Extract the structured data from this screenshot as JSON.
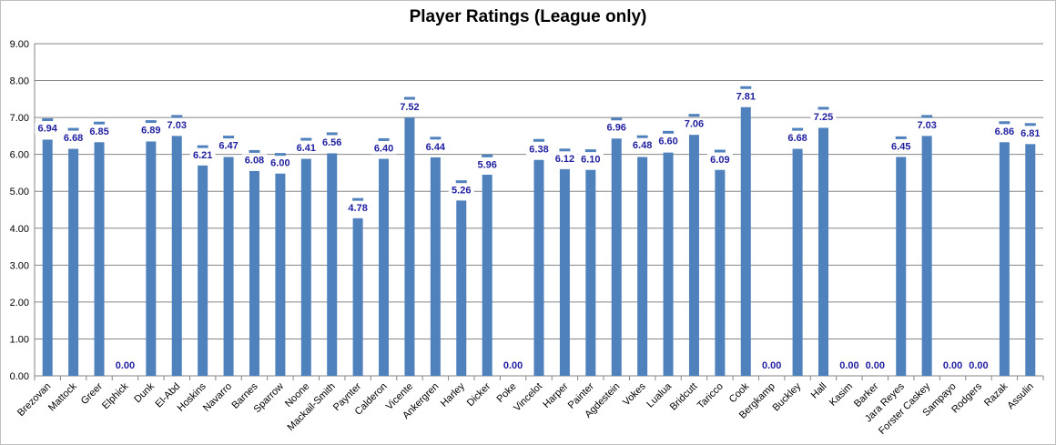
{
  "chart_data": {
    "type": "bar",
    "title": "Player Ratings (League only)",
    "xlabel": "",
    "ylabel": "",
    "ylim": [
      0,
      9
    ],
    "yticks": [
      "0.00",
      "1.00",
      "2.00",
      "3.00",
      "4.00",
      "5.00",
      "6.00",
      "7.00",
      "8.00",
      "9.00"
    ],
    "grid": true,
    "legend": "none",
    "bar_color": "#4f81bd",
    "marker_color": "#4f81bd",
    "label_color": "#1f1fa0",
    "categories": [
      "Brezovan",
      "Mattock",
      "Greer",
      "Elphick",
      "Dunk",
      "El-Abd",
      "Hoskins",
      "Navarro",
      "Barnes",
      "Sparrow",
      "Noone",
      "Mackail-Smith",
      "Paynter",
      "Calderon",
      "Vicente",
      "Ankergren",
      "Harley",
      "Dicker",
      "Poke",
      "Vincelot",
      "Harper",
      "Painter",
      "Agdestein",
      "Vokes",
      "Lualua",
      "Bridcutt",
      "Taricco",
      "Cook",
      "Bergkamp",
      "Buckley",
      "Hall",
      "Kasim",
      "Barker",
      "Jara Reyes",
      "Forster Caskey",
      "Sampayo",
      "Rodgers",
      "Razak",
      "Assulin"
    ],
    "series": [
      {
        "values": [
          6.4,
          6.15,
          6.33,
          0,
          6.35,
          6.5,
          5.7,
          5.93,
          5.55,
          5.48,
          5.88,
          6.03,
          4.27,
          5.88,
          7.0,
          5.92,
          4.75,
          5.45,
          0,
          5.85,
          5.6,
          5.58,
          6.43,
          5.93,
          6.05,
          6.53,
          5.58,
          7.28,
          0,
          6.15,
          6.72,
          0,
          0,
          5.93,
          6.5,
          0,
          0,
          6.33,
          6.28
        ]
      },
      {
        "values": [
          6.94,
          6.68,
          6.85,
          0.0,
          6.89,
          7.03,
          6.21,
          6.47,
          6.08,
          6.0,
          6.41,
          6.56,
          4.78,
          6.4,
          7.52,
          6.44,
          5.26,
          5.96,
          0.0,
          6.38,
          6.12,
          6.1,
          6.96,
          6.48,
          6.6,
          7.06,
          6.09,
          7.81,
          0.0,
          6.68,
          7.25,
          0.0,
          0.0,
          6.45,
          7.03,
          0.0,
          0.0,
          6.86,
          6.81
        ],
        "labels": [
          "6.94",
          "6.68",
          "6.85",
          "0.00",
          "6.89",
          "7.03",
          "6.21",
          "6.47",
          "6.08",
          "6.00",
          "6.41",
          "6.56",
          "4.78",
          "6.40",
          "7.52",
          "6.44",
          "5.26",
          "5.96",
          "0.00",
          "6.38",
          "6.12",
          "6.10",
          "6.96",
          "6.48",
          "6.60",
          "7.06",
          "6.09",
          "7.81",
          "0.00",
          "6.68",
          "7.25",
          "0.00",
          "0.00",
          "6.45",
          "7.03",
          "0.00",
          "0.00",
          "6.86",
          "6.81"
        ]
      }
    ]
  }
}
